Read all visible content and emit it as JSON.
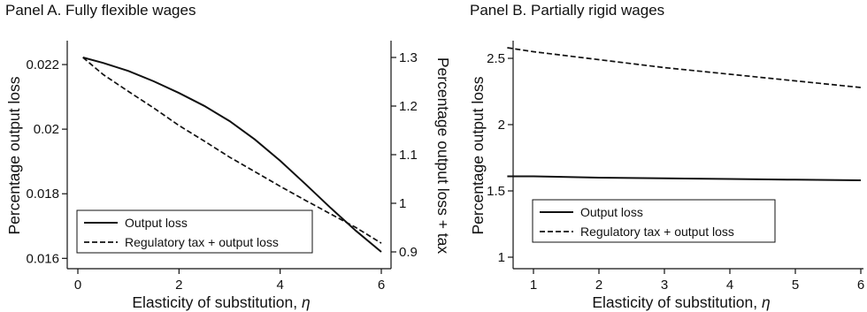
{
  "chart_data": [
    {
      "type": "line",
      "title": "Panel A. Fully flexible wages",
      "xlabel": "Elasticity of substitution,",
      "xlabel_symbol": "η",
      "ylabel": "Percentage output loss",
      "ylabel_right": "Percentage output loss + tax",
      "xlim": [
        0,
        6
      ],
      "ylim": [
        0.01595,
        0.0223
      ],
      "ylim_right": [
        0.88,
        1.31
      ],
      "x_ticks": [
        "0",
        "2",
        "4",
        "6"
      ],
      "y_ticks": [
        "0.016",
        "0.018",
        "0.02",
        "0.022"
      ],
      "y_ticks_right": [
        "0.9",
        "1",
        "1.1",
        "1.2",
        "1.3"
      ],
      "grid": false,
      "legend_position": "bottom-left",
      "series": [
        {
          "name": "Output loss",
          "axis": "left",
          "style": "solid",
          "x": [
            0.1,
            0.5,
            1,
            1.5,
            2,
            2.5,
            3,
            3.5,
            4,
            4.5,
            5,
            5.5,
            6
          ],
          "values": [
            0.02222,
            0.02205,
            0.0218,
            0.02148,
            0.02112,
            0.02072,
            0.02025,
            0.01968,
            0.01902,
            0.0183,
            0.01756,
            0.01685,
            0.0162
          ]
        },
        {
          "name": "Regulatory tax + output loss",
          "axis": "right",
          "style": "dashed",
          "x": [
            0.1,
            0.5,
            1,
            1.5,
            2,
            2.5,
            3,
            3.5,
            4,
            4.5,
            5,
            5.5,
            6
          ],
          "values": [
            1.3,
            1.265,
            1.23,
            1.196,
            1.16,
            1.128,
            1.095,
            1.065,
            1.035,
            1.006,
            0.978,
            0.95,
            0.918
          ]
        }
      ]
    },
    {
      "type": "line",
      "title": "Panel B. Partially rigid wages",
      "xlabel": "Elasticity of substitution,",
      "xlabel_symbol": "η",
      "ylabel": "Percentage output loss",
      "xlim": [
        0.55,
        6.05
      ],
      "ylim": [
        0.95,
        2.62
      ],
      "x_ticks": [
        "1",
        "2",
        "3",
        "4",
        "5",
        "6"
      ],
      "y_ticks": [
        "1",
        "1.5",
        "2",
        "2.5"
      ],
      "grid": false,
      "legend_position": "bottom-left",
      "series": [
        {
          "name": "Output loss",
          "style": "solid",
          "x": [
            0.6,
            1,
            2,
            3,
            4,
            5,
            6
          ],
          "values": [
            1.61,
            1.61,
            1.6,
            1.595,
            1.59,
            1.585,
            1.58
          ]
        },
        {
          "name": "Regulatory tax + output loss",
          "style": "dashed",
          "x": [
            0.6,
            1,
            2,
            3,
            4,
            5,
            6
          ],
          "values": [
            2.58,
            2.55,
            2.49,
            2.43,
            2.38,
            2.33,
            2.28
          ]
        }
      ]
    }
  ]
}
